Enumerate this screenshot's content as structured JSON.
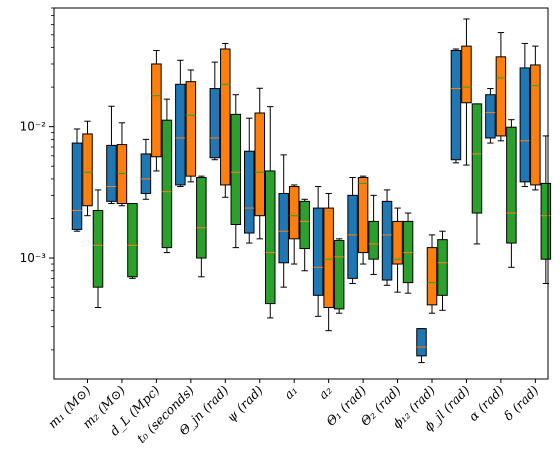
{
  "chart_data": {
    "type": "box",
    "categories": [
      "m₁ (M⊙)",
      "m₂ (M⊙)",
      "d_L (Mpc)",
      "t₀ (seconds)",
      "Θ_jn (rad)",
      "ψ (rad)",
      "a₁",
      "a₂",
      "Θ₁ (rad)",
      "Θ₂ (rad)",
      "ϕ₁₂ (rad)",
      "ϕ_jl (rad)",
      "α (rad)",
      "δ (rad)"
    ],
    "y_scale": "log",
    "ylim": [
      0.00012,
      0.08
    ],
    "y_ticks": [
      {
        "value": 0.001,
        "label": "10⁻³"
      },
      {
        "value": 0.01,
        "label": "10⁻²"
      }
    ],
    "grid": false,
    "series": [
      {
        "color": "#1f77b4",
        "boxes": [
          {
            "whislo": 0.0016,
            "q1": 0.00165,
            "med": 0.0023,
            "q3": 0.0075,
            "whishi": 0.0096
          },
          {
            "whislo": 0.0026,
            "q1": 0.0027,
            "med": 0.0035,
            "q3": 0.0072,
            "whishi": 0.0143
          },
          {
            "whislo": 0.0028,
            "q1": 0.0031,
            "med": 0.004,
            "q3": 0.0062,
            "whishi": 0.008
          },
          {
            "whislo": 0.0035,
            "q1": 0.0036,
            "med": 0.0082,
            "q3": 0.021,
            "whishi": 0.032
          },
          {
            "whislo": 0.0056,
            "q1": 0.0058,
            "med": 0.0082,
            "q3": 0.0195,
            "whishi": 0.031
          },
          {
            "whislo": 0.0013,
            "q1": 0.00155,
            "med": 0.0024,
            "q3": 0.0065,
            "whishi": 0.0116
          },
          {
            "whislo": 0.0006,
            "q1": 0.00092,
            "med": 0.0016,
            "q3": 0.0031,
            "whishi": 0.0061
          },
          {
            "whislo": 0.00036,
            "q1": 0.00052,
            "med": 0.00085,
            "q3": 0.0024,
            "whishi": 0.0035
          },
          {
            "whislo": 0.00064,
            "q1": 0.0007,
            "med": 0.0015,
            "q3": 0.003,
            "whishi": 0.0041
          },
          {
            "whislo": 0.00062,
            "q1": 0.00068,
            "med": 0.0015,
            "q3": 0.0027,
            "whishi": 0.0033
          },
          {
            "whislo": 0.00016,
            "q1": 0.00018,
            "med": 0.00021,
            "q3": 0.00029,
            "whishi": 0.00029
          },
          {
            "whislo": 0.0053,
            "q1": 0.0056,
            "med": 0.0195,
            "q3": 0.038,
            "whishi": 0.039
          },
          {
            "whislo": 0.0075,
            "q1": 0.0082,
            "med": 0.0128,
            "q3": 0.0175,
            "whishi": 0.0195
          },
          {
            "whislo": 0.0035,
            "q1": 0.0038,
            "med": 0.0078,
            "q3": 0.028,
            "whishi": 0.043
          }
        ]
      },
      {
        "color": "#ff7f0e",
        "boxes": [
          {
            "whislo": 0.0021,
            "q1": 0.0025,
            "med": 0.0045,
            "q3": 0.0088,
            "whishi": 0.011
          },
          {
            "whislo": 0.0025,
            "q1": 0.0026,
            "med": 0.0044,
            "q3": 0.0073,
            "whishi": 0.0107
          },
          {
            "whislo": 0.0046,
            "q1": 0.0059,
            "med": 0.0172,
            "q3": 0.03,
            "whishi": 0.038
          },
          {
            "whislo": 0.0038,
            "q1": 0.0042,
            "med": 0.0122,
            "q3": 0.022,
            "whishi": 0.027
          },
          {
            "whislo": 0.0029,
            "q1": 0.0036,
            "med": 0.021,
            "q3": 0.039,
            "whishi": 0.043
          },
          {
            "whislo": 0.0014,
            "q1": 0.0021,
            "med": 0.0045,
            "q3": 0.0127,
            "whishi": 0.0196
          },
          {
            "whislo": 0.0009,
            "q1": 0.0014,
            "med": 0.0021,
            "q3": 0.0035,
            "whishi": 0.0036
          },
          {
            "whislo": 0.00028,
            "q1": 0.00042,
            "med": 0.00098,
            "q3": 0.0024,
            "whishi": 0.0031
          },
          {
            "whislo": 0.0009,
            "q1": 0.0011,
            "med": 0.0037,
            "q3": 0.0041,
            "whishi": 0.0042
          },
          {
            "whislo": 0.00055,
            "q1": 0.0009,
            "med": 0.00098,
            "q3": 0.0019,
            "whishi": 0.0024
          },
          {
            "whislo": 0.00038,
            "q1": 0.00044,
            "med": 0.00065,
            "q3": 0.0012,
            "whishi": 0.0015
          },
          {
            "whislo": 0.0051,
            "q1": 0.0152,
            "med": 0.02,
            "q3": 0.041,
            "whishi": 0.066
          },
          {
            "whislo": 0.0078,
            "q1": 0.0085,
            "med": 0.0235,
            "q3": 0.034,
            "whishi": 0.052
          },
          {
            "whislo": 0.0033,
            "q1": 0.0036,
            "med": 0.0205,
            "q3": 0.0295,
            "whishi": 0.041
          }
        ]
      },
      {
        "color": "#2ca02c",
        "boxes": [
          {
            "whislo": 0.00042,
            "q1": 0.0006,
            "med": 0.00125,
            "q3": 0.0023,
            "whishi": 0.0033
          },
          {
            "whislo": 0.0007,
            "q1": 0.00072,
            "med": 0.00125,
            "q3": 0.0026,
            "whishi": 0.0026
          },
          {
            "whislo": 0.0011,
            "q1": 0.0012,
            "med": 0.0032,
            "q3": 0.0112,
            "whishi": 0.0162
          },
          {
            "whislo": 0.00072,
            "q1": 0.001,
            "med": 0.0017,
            "q3": 0.0041,
            "whishi": 0.0042
          },
          {
            "whislo": 0.0012,
            "q1": 0.0018,
            "med": 0.0045,
            "q3": 0.0124,
            "whishi": 0.0175
          },
          {
            "whislo": 0.00035,
            "q1": 0.00045,
            "med": 0.0011,
            "q3": 0.0046,
            "whishi": 0.0142
          },
          {
            "whislo": 0.0008,
            "q1": 0.00118,
            "med": 0.0019,
            "q3": 0.0027,
            "whishi": 0.0028
          },
          {
            "whislo": 0.00038,
            "q1": 0.00041,
            "med": 0.00102,
            "q3": 0.00136,
            "whishi": 0.0014
          },
          {
            "whislo": 0.00075,
            "q1": 0.00098,
            "med": 0.00128,
            "q3": 0.0019,
            "whishi": 0.003
          },
          {
            "whislo": 0.00054,
            "q1": 0.00065,
            "med": 0.0011,
            "q3": 0.0019,
            "whishi": 0.0022
          },
          {
            "whislo": 0.0004,
            "q1": 0.00052,
            "med": 0.00092,
            "q3": 0.00138,
            "whishi": 0.0016
          },
          {
            "whislo": 0.00128,
            "q1": 0.0022,
            "med": 0.0062,
            "q3": 0.0149,
            "whishi": 0.0149
          },
          {
            "whislo": 0.00085,
            "q1": 0.0013,
            "med": 0.0022,
            "q3": 0.0099,
            "whishi": 0.0113
          },
          {
            "whislo": 0.00064,
            "q1": 0.00098,
            "med": 0.0021,
            "q3": 0.0037,
            "whishi": 0.0085
          }
        ]
      }
    ]
  }
}
